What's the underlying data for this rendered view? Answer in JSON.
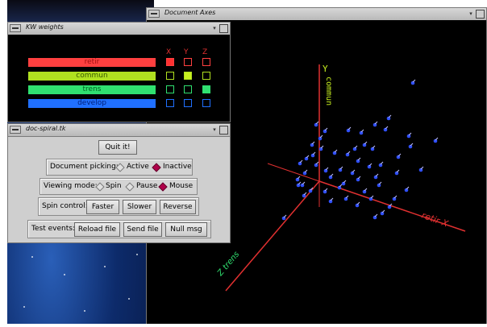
{
  "axes_window": {
    "title": "Document Axes",
    "axis_y_label": "Y",
    "axis_y_term": "commun",
    "axis_x_label": "retir X",
    "axis_z_label": "Z trens"
  },
  "kw_window": {
    "title": "KW weights",
    "headers": [
      "X",
      "Y",
      "Z"
    ],
    "rows": [
      {
        "label": "retir",
        "color": "#ff4040",
        "text_color": "#a01010",
        "boxes": [
          "#ff3030",
          "",
          ""
        ]
      },
      {
        "label": "commun",
        "color": "#b0e020",
        "text_color": "#3a5a00",
        "boxes": [
          "",
          "#c8f020",
          ""
        ]
      },
      {
        "label": "trens",
        "color": "#30e070",
        "text_color": "#006020",
        "boxes": [
          "",
          "",
          "#30e070"
        ]
      },
      {
        "label": "develop",
        "color": "#2070ff",
        "text_color": "#00207a",
        "boxes": [
          "",
          "",
          ""
        ]
      }
    ]
  },
  "spiral_window": {
    "title": "doc-spiral.tk",
    "quit_label": "Quit it!",
    "picking": {
      "label": "Document picking:",
      "opt1": "Active",
      "opt2": "Inactive",
      "selected": "Inactive"
    },
    "viewing": {
      "label": "Viewing mode:",
      "opt1": "Spin",
      "opt2": "Pause",
      "opt3": "Mouse",
      "selected": "Mouse"
    },
    "spin": {
      "label": "Spin control:",
      "faster": "Faster",
      "slower": "Slower",
      "reverse": "Reverse"
    },
    "test": {
      "label": "Test events:",
      "reload": "Reload file",
      "send": "Send file",
      "null": "Null msg"
    }
  }
}
